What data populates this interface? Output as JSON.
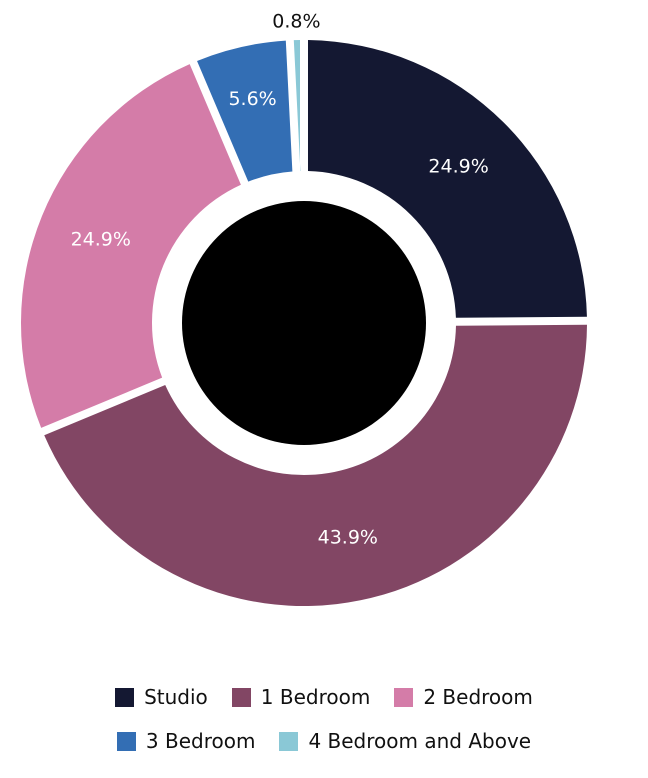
{
  "chart_data": {
    "type": "donut",
    "title": "",
    "categories": [
      "Studio",
      "1 Bedroom",
      "2 Bedroom",
      "3 Bedroom",
      "4 Bedroom and Above"
    ],
    "values": [
      24.9,
      43.9,
      24.9,
      5.6,
      0.8
    ],
    "data_labels": [
      "24.9%",
      "43.9%",
      "24.9%",
      "5.6%",
      "0.8%"
    ],
    "colors": [
      "#141832",
      "#824664",
      "#d47ca8",
      "#336eb4",
      "#8ac8d6"
    ],
    "center_color": "#000000",
    "legend_position": "bottom"
  },
  "legend": {
    "rows": [
      [
        {
          "label": "Studio",
          "color": "#141832"
        },
        {
          "label": "1 Bedroom",
          "color": "#824664"
        },
        {
          "label": "2 Bedroom",
          "color": "#d47ca8"
        }
      ],
      [
        {
          "label": "3 Bedroom",
          "color": "#336eb4"
        },
        {
          "label": "4 Bedroom and Above",
          "color": "#8ac8d6"
        }
      ]
    ]
  }
}
